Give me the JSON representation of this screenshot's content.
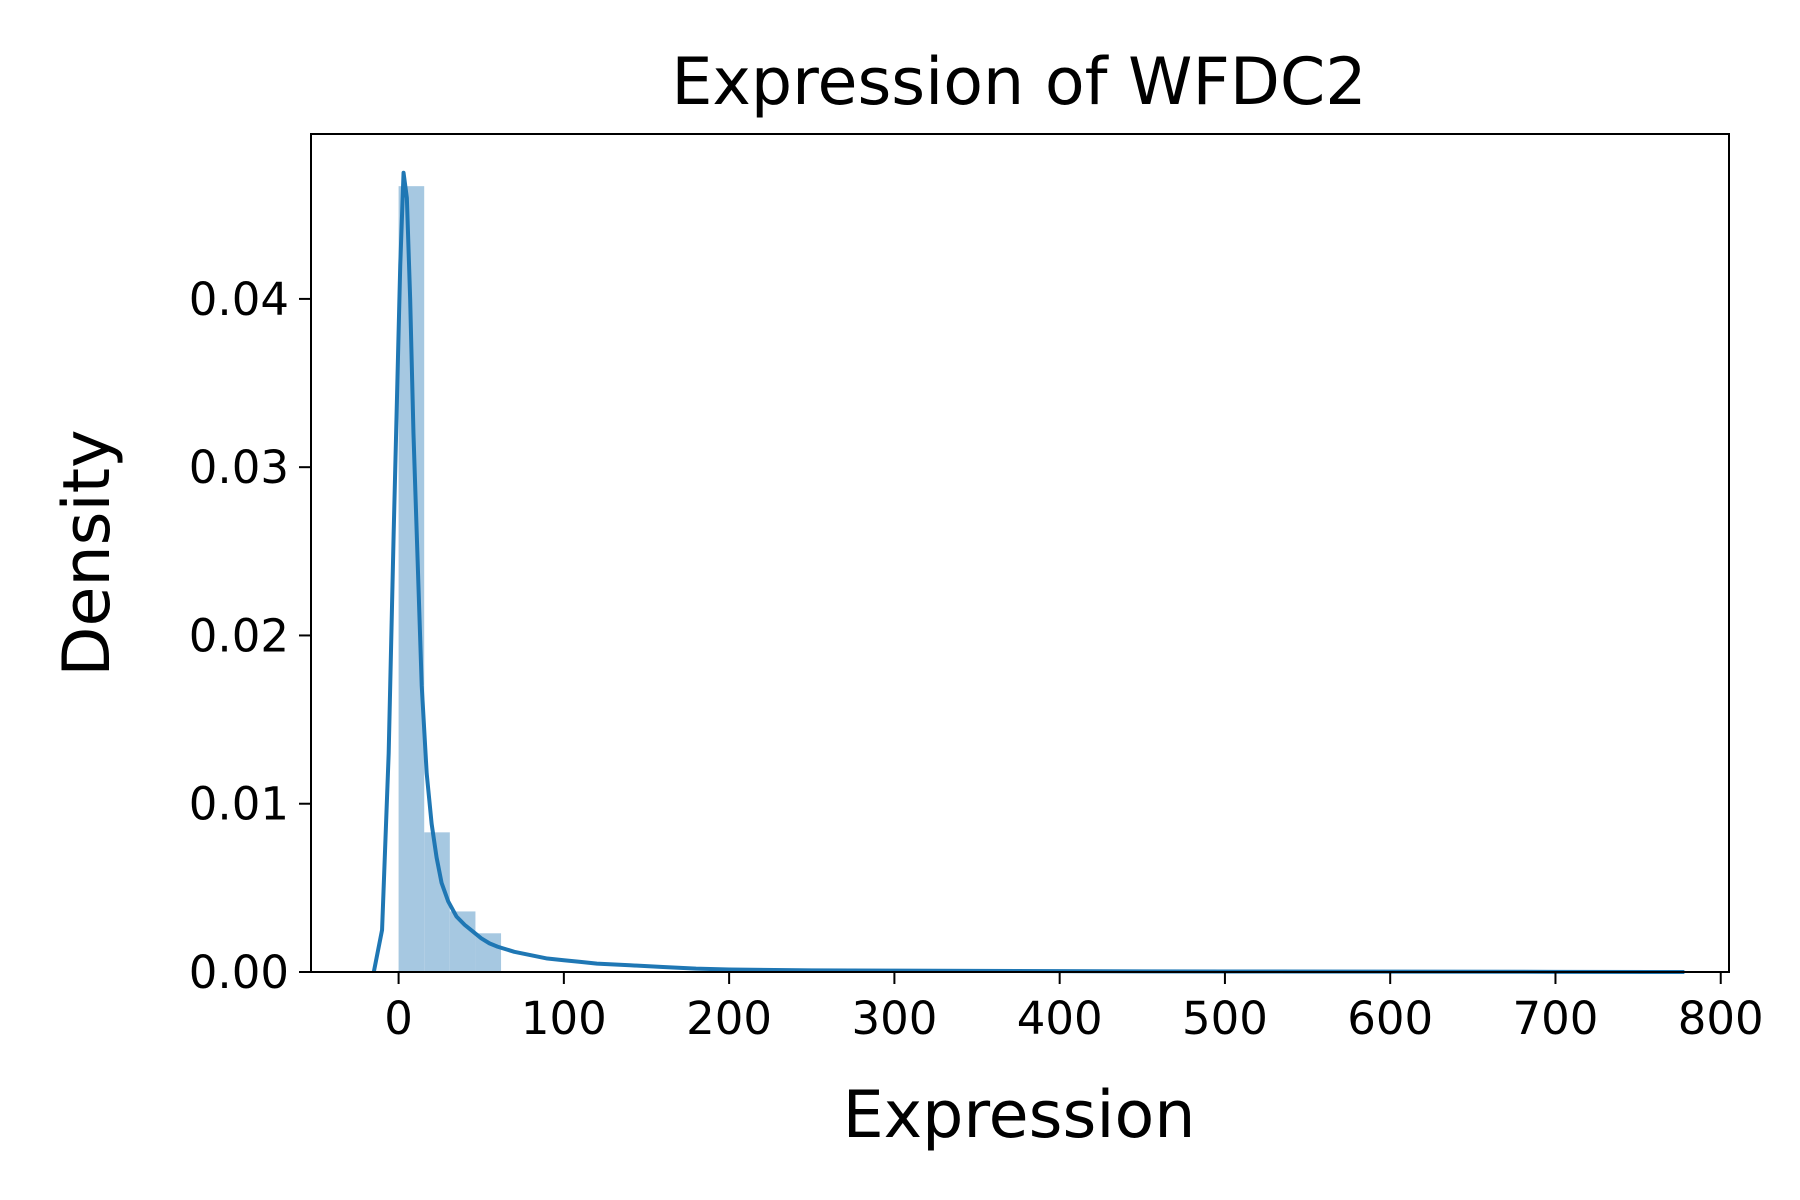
{
  "chart_data": {
    "type": "histogram",
    "title": "Expression of WFDC2",
    "xlabel": "Expression",
    "ylabel": "Density",
    "xlim": [
      -53,
      805
    ],
    "ylim": [
      0,
      0.0498
    ],
    "xticks": [
      0,
      100,
      200,
      300,
      400,
      500,
      600,
      700,
      800
    ],
    "xtick_labels": [
      "0",
      "100",
      "200",
      "300",
      "400",
      "500",
      "600",
      "700",
      "800"
    ],
    "yticks": [
      0,
      0.01,
      0.02,
      0.03,
      0.04
    ],
    "ytick_labels": [
      "0.00",
      "0.01",
      "0.02",
      "0.03",
      "0.04"
    ],
    "grid": false,
    "histogram": {
      "color": "#a6c8e1",
      "bin_edges": [
        0,
        15.5,
        31,
        46.5,
        62
      ],
      "density": [
        0.0467,
        0.0083,
        0.0036,
        0.0023
      ]
    },
    "kde": {
      "color": "#1f77b4",
      "x": [
        -15,
        -10,
        -6,
        -3,
        -1,
        1,
        3,
        5,
        7,
        9,
        11,
        14,
        17,
        20,
        23,
        26,
        30,
        35,
        40,
        45,
        50,
        55,
        60,
        70,
        80,
        90,
        100,
        110,
        120,
        140,
        160,
        180,
        200,
        250,
        300,
        400,
        500,
        600,
        700,
        778
      ],
      "y": [
        0,
        0.0025,
        0.013,
        0.026,
        0.034,
        0.042,
        0.0475,
        0.046,
        0.04,
        0.032,
        0.026,
        0.017,
        0.0118,
        0.0088,
        0.0068,
        0.0053,
        0.0042,
        0.0033,
        0.0028,
        0.0024,
        0.002,
        0.0017,
        0.0015,
        0.0012,
        0.001,
        0.0008,
        0.0007,
        0.0006,
        0.0005,
        0.0004,
        0.0003,
        0.0002,
        0.00015,
        0.0001,
        8e-05,
        5e-05,
        3e-05,
        2e-05,
        1e-05,
        0
      ]
    }
  }
}
